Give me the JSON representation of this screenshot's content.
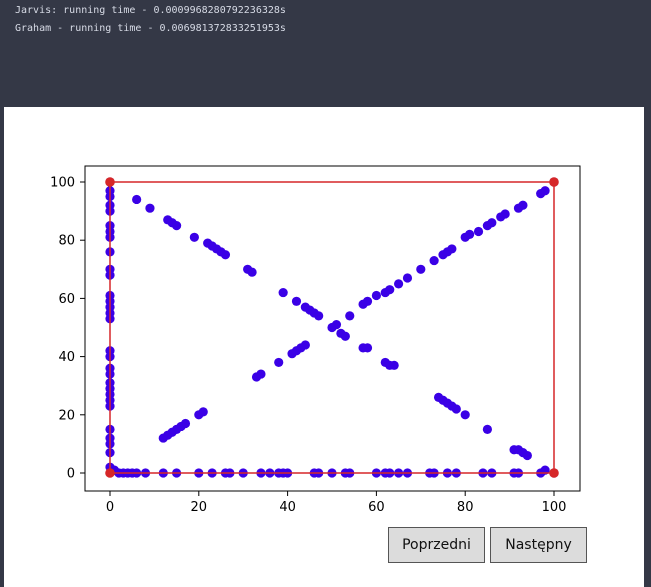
{
  "console": {
    "lines": [
      "Jarvis: running time - 0.0009968280792236328s",
      "Graham - running time - 0.006981372833251953s"
    ]
  },
  "buttons": {
    "prev_label": "Poprzedni",
    "next_label": "Następny"
  },
  "colors": {
    "points": "#3a00e6",
    "hull": "#d62728",
    "background_dark": "#343846"
  },
  "chart_data": {
    "type": "scatter",
    "title": "",
    "xlabel": "",
    "ylabel": "",
    "xlim": [
      -6,
      106
    ],
    "ylim": [
      -6,
      106
    ],
    "xticks": [
      0,
      20,
      40,
      60,
      80,
      100
    ],
    "yticks": [
      0,
      20,
      40,
      60,
      80,
      100
    ],
    "grid": false,
    "series": [
      {
        "role": "points",
        "points": [
          [
            0,
            100
          ],
          [
            0,
            97
          ],
          [
            0,
            95
          ],
          [
            0,
            92
          ],
          [
            0,
            90
          ],
          [
            0,
            85
          ],
          [
            0,
            83
          ],
          [
            0,
            81
          ],
          [
            0,
            76
          ],
          [
            0,
            70
          ],
          [
            0,
            68
          ],
          [
            0,
            61
          ],
          [
            0,
            59
          ],
          [
            0,
            57
          ],
          [
            0,
            55
          ],
          [
            0,
            53
          ],
          [
            0,
            42
          ],
          [
            0,
            40
          ],
          [
            0,
            36
          ],
          [
            0,
            34
          ],
          [
            0,
            31
          ],
          [
            0,
            29
          ],
          [
            0,
            27
          ],
          [
            0,
            25
          ],
          [
            0,
            23
          ],
          [
            0,
            15
          ],
          [
            0,
            12
          ],
          [
            0,
            10
          ],
          [
            0,
            7
          ],
          [
            0,
            2
          ],
          [
            1,
            1
          ],
          [
            2,
            0
          ],
          [
            3,
            0
          ],
          [
            4,
            0
          ],
          [
            5,
            0
          ],
          [
            6,
            0
          ],
          [
            8,
            0
          ],
          [
            12,
            0
          ],
          [
            15,
            0
          ],
          [
            20,
            0
          ],
          [
            23,
            0
          ],
          [
            26,
            0
          ],
          [
            27,
            0
          ],
          [
            30,
            0
          ],
          [
            34,
            0
          ],
          [
            36,
            0
          ],
          [
            38,
            0
          ],
          [
            39,
            0
          ],
          [
            40,
            0
          ],
          [
            46,
            0
          ],
          [
            47,
            0
          ],
          [
            50,
            0
          ],
          [
            53,
            0
          ],
          [
            54,
            0
          ],
          [
            60,
            0
          ],
          [
            62,
            0
          ],
          [
            63,
            0
          ],
          [
            65,
            0
          ],
          [
            67,
            0
          ],
          [
            72,
            0
          ],
          [
            73,
            0
          ],
          [
            76,
            0
          ],
          [
            78,
            0
          ],
          [
            84,
            0
          ],
          [
            86,
            0
          ],
          [
            91,
            0
          ],
          [
            92,
            0
          ],
          [
            97,
            0
          ],
          [
            98,
            1
          ],
          [
            100,
            0
          ],
          [
            100,
            100
          ],
          [
            98,
            97
          ],
          [
            97,
            96
          ],
          [
            93,
            92
          ],
          [
            92,
            91
          ],
          [
            89,
            89
          ],
          [
            88,
            88
          ],
          [
            86,
            86
          ],
          [
            85,
            85
          ],
          [
            83,
            83
          ],
          [
            81,
            82
          ],
          [
            80,
            81
          ],
          [
            77,
            77
          ],
          [
            76,
            76
          ],
          [
            75,
            75
          ],
          [
            73,
            73
          ],
          [
            70,
            70
          ],
          [
            67,
            67
          ],
          [
            65,
            65
          ],
          [
            63,
            63
          ],
          [
            62,
            62
          ],
          [
            60,
            61
          ],
          [
            58,
            59
          ],
          [
            57,
            58
          ],
          [
            54,
            54
          ],
          [
            51,
            51
          ],
          [
            50,
            50
          ],
          [
            44,
            44
          ],
          [
            43,
            43
          ],
          [
            42,
            42
          ],
          [
            41,
            41
          ],
          [
            38,
            38
          ],
          [
            34,
            34
          ],
          [
            33,
            33
          ],
          [
            21,
            21
          ],
          [
            20,
            20
          ],
          [
            17,
            17
          ],
          [
            16,
            16
          ],
          [
            15,
            15
          ],
          [
            14,
            14
          ],
          [
            13,
            13
          ],
          [
            12,
            12
          ],
          [
            6,
            94
          ],
          [
            9,
            91
          ],
          [
            13,
            87
          ],
          [
            14,
            86
          ],
          [
            15,
            85
          ],
          [
            19,
            81
          ],
          [
            22,
            79
          ],
          [
            23,
            78
          ],
          [
            24,
            77
          ],
          [
            25,
            76
          ],
          [
            26,
            75
          ],
          [
            31,
            70
          ],
          [
            32,
            69
          ],
          [
            39,
            62
          ],
          [
            42,
            59
          ],
          [
            44,
            57
          ],
          [
            45,
            56
          ],
          [
            46,
            55
          ],
          [
            47,
            54
          ],
          [
            52,
            48
          ],
          [
            53,
            47
          ],
          [
            57,
            43
          ],
          [
            58,
            43
          ],
          [
            62,
            38
          ],
          [
            63,
            37
          ],
          [
            64,
            37
          ],
          [
            74,
            26
          ],
          [
            75,
            25
          ],
          [
            76,
            24
          ],
          [
            77,
            23
          ],
          [
            78,
            22
          ],
          [
            80,
            20
          ],
          [
            85,
            15
          ],
          [
            91,
            8
          ],
          [
            92,
            8
          ],
          [
            93,
            7
          ],
          [
            94,
            6
          ]
        ]
      },
      {
        "role": "hull",
        "points": [
          [
            0,
            0
          ],
          [
            100,
            0
          ],
          [
            100,
            100
          ],
          [
            0,
            100
          ]
        ]
      }
    ]
  }
}
